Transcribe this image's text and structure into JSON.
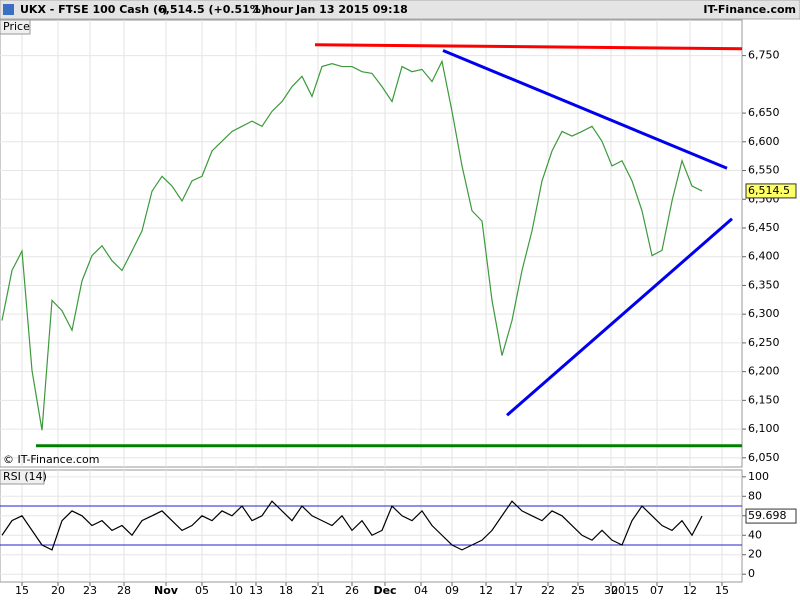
{
  "header": {
    "symbol": "UKX - FTSE 100 Cash (-)",
    "quote": "6,514.5 (+0.51%)",
    "period": "1 hour",
    "timestamp": "Jan 13 2015 09:18",
    "source": "IT-Finance.com"
  },
  "chart_data": [
    {
      "type": "line",
      "title": "Price",
      "watermark": "© IT-Finance.com",
      "xlim": [
        -0.2,
        74
      ],
      "ylim": [
        6034,
        6812
      ],
      "yticks": [
        {
          "value": 6050,
          "label": "6,050"
        },
        {
          "value": 6100,
          "label": "6,100"
        },
        {
          "value": 6150,
          "label": "6,150"
        },
        {
          "value": 6200,
          "label": "6,200"
        },
        {
          "value": 6250,
          "label": "6,250"
        },
        {
          "value": 6300,
          "label": "6,300"
        },
        {
          "value": 6350,
          "label": "6,350"
        },
        {
          "value": 6400,
          "label": "6,400"
        },
        {
          "value": 6450,
          "label": "6,450"
        },
        {
          "value": 6500,
          "label": "6,500"
        },
        {
          "value": 6550,
          "label": "6,550"
        },
        {
          "value": 6600,
          "label": "6,600"
        },
        {
          "value": 6650,
          "label": "6,650"
        },
        {
          "value": 6750,
          "label": "6,750"
        }
      ],
      "last": {
        "value": 6514.5,
        "label": "6,514.5"
      },
      "series": [
        {
          "name": "FTSE 100",
          "color": "#3c9a3c",
          "values": [
            6289,
            6376,
            6410,
            6202,
            6098,
            6324,
            6306,
            6272,
            6358,
            6402,
            6419,
            6393,
            6376,
            6410,
            6445,
            6514,
            6540,
            6523,
            6497,
            6532,
            6540,
            6584,
            6601,
            6618,
            6627,
            6636,
            6627,
            6653,
            6670,
            6696,
            6714,
            6679,
            6731,
            6736,
            6731,
            6731,
            6722,
            6719,
            6696,
            6670,
            6731,
            6722,
            6726,
            6705,
            6740,
            6653,
            6558,
            6480,
            6462,
            6324,
            6228,
            6289,
            6376,
            6445,
            6532,
            6584,
            6618,
            6610,
            6618,
            6627,
            6601,
            6558,
            6567,
            6532,
            6480,
            6402,
            6411,
            6497,
            6567,
            6523,
            6514.5
          ]
        }
      ],
      "trendlines": [
        {
          "color": "#ff0000",
          "x": [
            31.3,
            74
          ],
          "y": [
            6769,
            6762
          ]
        },
        {
          "color": "#0000ee",
          "x": [
            44.1,
            72.5
          ],
          "y": [
            6759,
            6554
          ]
        },
        {
          "color": "#0000ee",
          "x": [
            50.5,
            73
          ],
          "y": [
            6124,
            6466
          ]
        },
        {
          "color": "#008000",
          "x": [
            3.4,
            74
          ],
          "y": [
            6071,
            6071
          ]
        }
      ]
    },
    {
      "type": "line",
      "title": "RSI (14)",
      "xlim": [
        -0.2,
        74
      ],
      "ylim": [
        -8,
        107
      ],
      "yticks": [
        0,
        20,
        40,
        60,
        80,
        100
      ],
      "levels": [
        30,
        70
      ],
      "last": 59.698,
      "xticks": [
        {
          "value": 2,
          "label": "15"
        },
        {
          "value": 5.6,
          "label": "20"
        },
        {
          "value": 8.8,
          "label": "23"
        },
        {
          "value": 12.2,
          "label": "28"
        },
        {
          "value": 16.4,
          "label": "Nov"
        },
        {
          "value": 20,
          "label": "05"
        },
        {
          "value": 23.4,
          "label": "10"
        },
        {
          "value": 25.4,
          "label": "13"
        },
        {
          "value": 28.4,
          "label": "18"
        },
        {
          "value": 31.6,
          "label": "21"
        },
        {
          "value": 35,
          "label": "26"
        },
        {
          "value": 38.3,
          "label": "Dec"
        },
        {
          "value": 41.9,
          "label": "04"
        },
        {
          "value": 45,
          "label": "09"
        },
        {
          "value": 48.4,
          "label": "12"
        },
        {
          "value": 51.4,
          "label": "17"
        },
        {
          "value": 54.6,
          "label": "22"
        },
        {
          "value": 57.6,
          "label": "25"
        },
        {
          "value": 60.9,
          "label": "30"
        },
        {
          "value": 62.3,
          "label": "2015"
        },
        {
          "value": 65.5,
          "label": "07"
        },
        {
          "value": 68.8,
          "label": "12"
        },
        {
          "value": 72,
          "label": "15"
        }
      ],
      "series": [
        {
          "name": "RSI",
          "color": "#000000",
          "values": [
            40,
            55,
            60,
            45,
            30,
            25,
            55,
            65,
            60,
            50,
            55,
            45,
            50,
            40,
            55,
            60,
            65,
            55,
            45,
            50,
            60,
            55,
            65,
            60,
            70,
            55,
            60,
            75,
            65,
            55,
            70,
            60,
            55,
            50,
            60,
            45,
            55,
            40,
            45,
            70,
            60,
            55,
            65,
            50,
            40,
            30,
            25,
            30,
            35,
            45,
            60,
            75,
            65,
            60,
            55,
            65,
            60,
            50,
            40,
            35,
            45,
            35,
            30,
            55,
            70,
            60,
            50,
            45,
            55,
            40,
            59.698
          ]
        }
      ]
    }
  ]
}
